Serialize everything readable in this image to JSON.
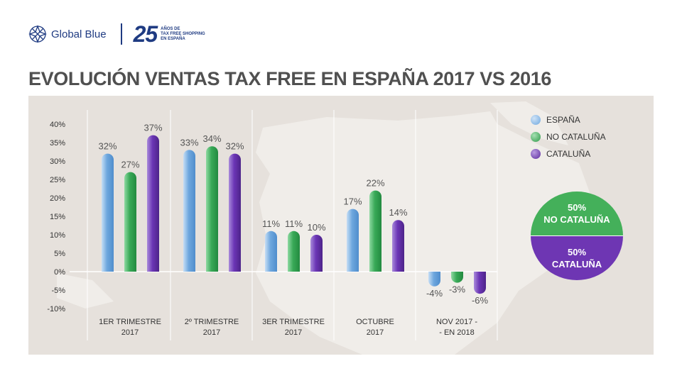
{
  "header": {
    "brand_name": "Global Blue",
    "anniversary_number": "25",
    "anniversary_line1": "AÑOS DE",
    "anniversary_line2": "TAX FREE SHOPPING",
    "anniversary_line3": "EN ESPAÑA",
    "brand_color": "#1f3b82"
  },
  "chart_data": {
    "type": "bar",
    "title": "EVOLUCIÓN VENTAS TAX FREE EN ESPAÑA 2017 VS 2016",
    "categories": [
      [
        "1ER TRIMESTRE",
        "2017"
      ],
      [
        "2º TRIMESTRE",
        "2017"
      ],
      [
        "3ER TRIMESTRE",
        "2017"
      ],
      [
        "OCTUBRE",
        "2017"
      ],
      [
        "NOV 2017 -",
        "- EN 2018"
      ]
    ],
    "series": [
      {
        "name": "ESPAÑA",
        "color": "#7fb4e3",
        "values": [
          32,
          33,
          11,
          17,
          -4
        ],
        "labels": [
          "32%",
          "33%",
          "11%",
          "17%",
          "-4%"
        ]
      },
      {
        "name": "NO CATALUÑA",
        "color": "#3fae5a",
        "values": [
          27,
          34,
          11,
          22,
          -3
        ],
        "labels": [
          "27%",
          "34%",
          "11%",
          "22%",
          "-3%"
        ]
      },
      {
        "name": "CATALUÑA",
        "color": "#6b35b5",
        "values": [
          37,
          32,
          10,
          14,
          -6
        ],
        "labels": [
          "37%",
          "32%",
          "10%",
          "14%",
          "-6%"
        ]
      }
    ],
    "y_ticks": [
      "40%",
      "35%",
      "30%",
      "25%",
      "20%",
      "15%",
      "10%",
      "5%",
      "0%",
      "-5%",
      "-10%"
    ],
    "y_tick_values": [
      40,
      35,
      30,
      25,
      20,
      15,
      10,
      5,
      0,
      -5,
      -10
    ],
    "ylim": [
      -10,
      40
    ],
    "legend_position": "top-right",
    "grid": false
  },
  "split": {
    "top_value": "50%",
    "top_label": "NO CATALUÑA",
    "bottom_value": "50%",
    "bottom_label": "CATALUÑA",
    "top_color": "#44b05a",
    "bottom_color": "#6e36b3"
  }
}
